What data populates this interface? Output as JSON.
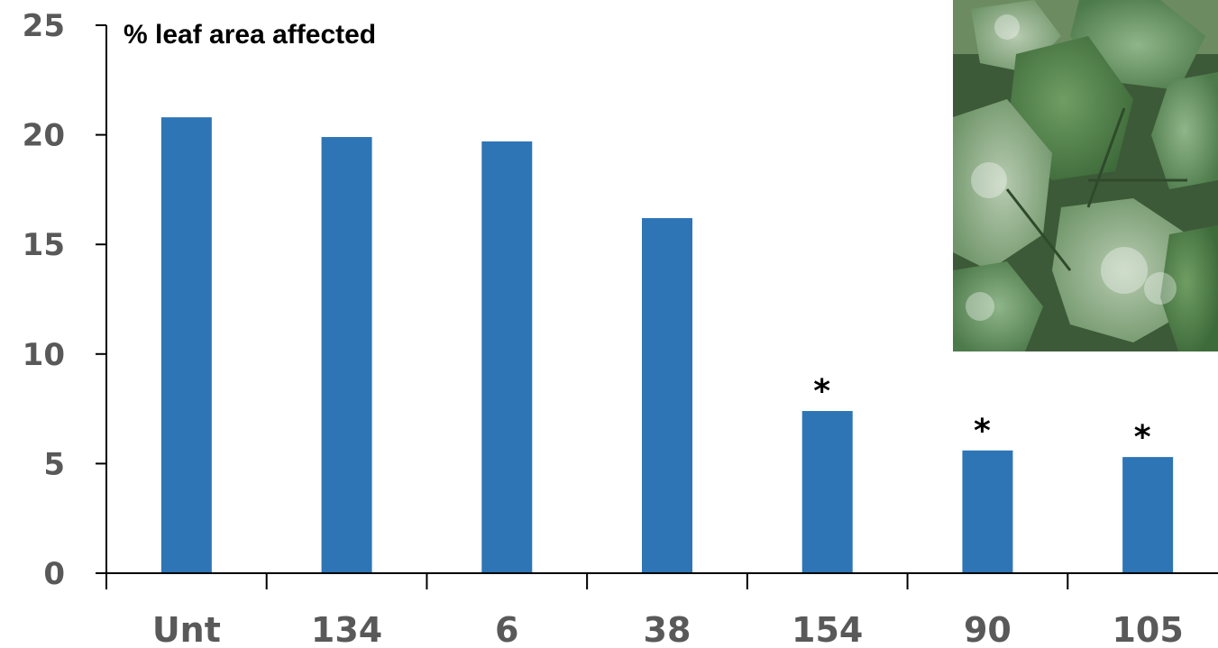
{
  "chart_data": {
    "type": "bar",
    "title": "% leaf area affected",
    "xlabel": "",
    "ylabel": "",
    "categories": [
      "Unt",
      "134",
      "6",
      "38",
      "154",
      "90",
      "105"
    ],
    "values": [
      20.8,
      19.9,
      19.7,
      16.2,
      7.4,
      5.6,
      5.3
    ],
    "significant": [
      false,
      false,
      false,
      false,
      true,
      true,
      true
    ],
    "significance_marker": "*",
    "ylim": [
      0,
      25
    ],
    "yticks": [
      0,
      5,
      10,
      15,
      20,
      25
    ],
    "grid": false,
    "legend": "none",
    "bar_color": "#2E75B6",
    "tick_label_color": "#595959",
    "axis_color": "#000000"
  },
  "image": {
    "subject": "cucumber leaves with powdery mildew"
  }
}
